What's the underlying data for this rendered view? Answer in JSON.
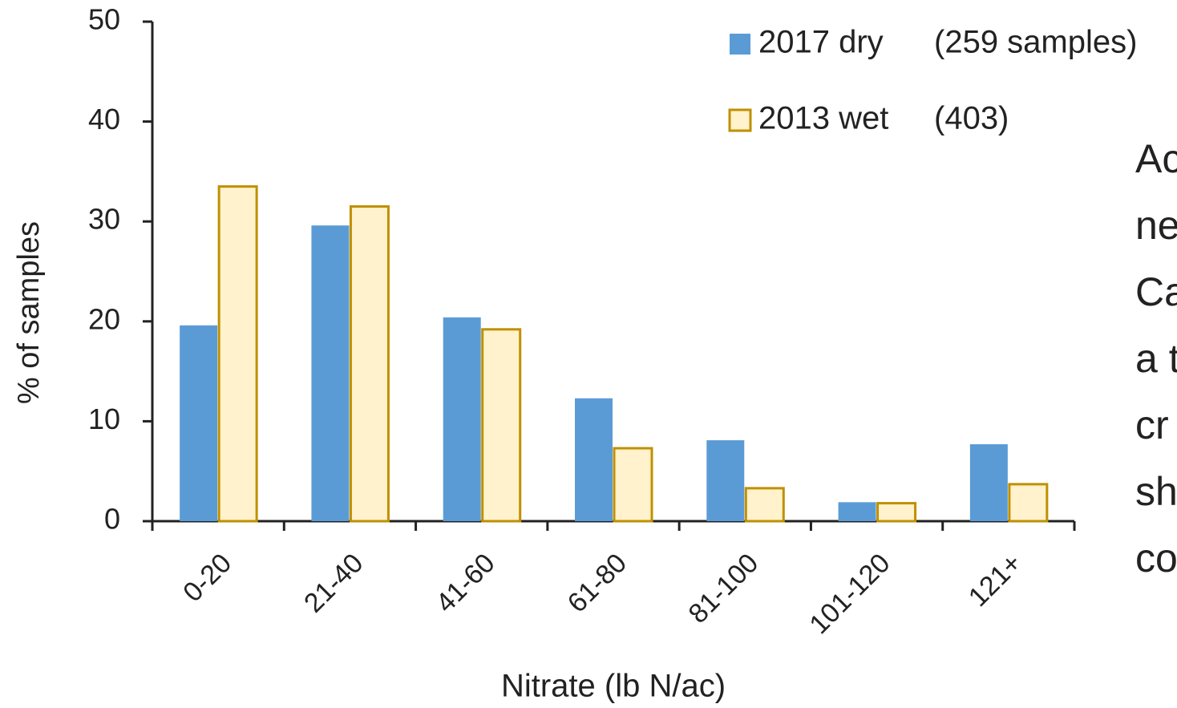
{
  "chart_data": {
    "type": "bar",
    "categories": [
      "0-20",
      "21-40",
      "41-60",
      "61-80",
      "81-100",
      "101-120",
      "121+"
    ],
    "series": [
      {
        "name": "2017 dry",
        "color": "#5b9bd5",
        "values": [
          19.6,
          29.6,
          20.4,
          12.3,
          8.1,
          1.9,
          7.7
        ]
      },
      {
        "name": "2013 wet",
        "color": "#fff2cc",
        "edge_color": "#bf9000",
        "values": [
          33.5,
          31.5,
          19.2,
          7.3,
          3.3,
          1.8,
          3.7
        ]
      }
    ],
    "legend_notes": [
      "(259 samples)",
      "(403)"
    ],
    "x_label": "Nitrate (lb N/ac)",
    "y_label": "% of samples",
    "ylim": [
      0,
      50
    ],
    "yticks": [
      0,
      10,
      20,
      30,
      40,
      50
    ],
    "side_text": [
      "Ac",
      "ne",
      "Ca",
      "a t",
      "cr",
      "sh",
      "co"
    ]
  }
}
